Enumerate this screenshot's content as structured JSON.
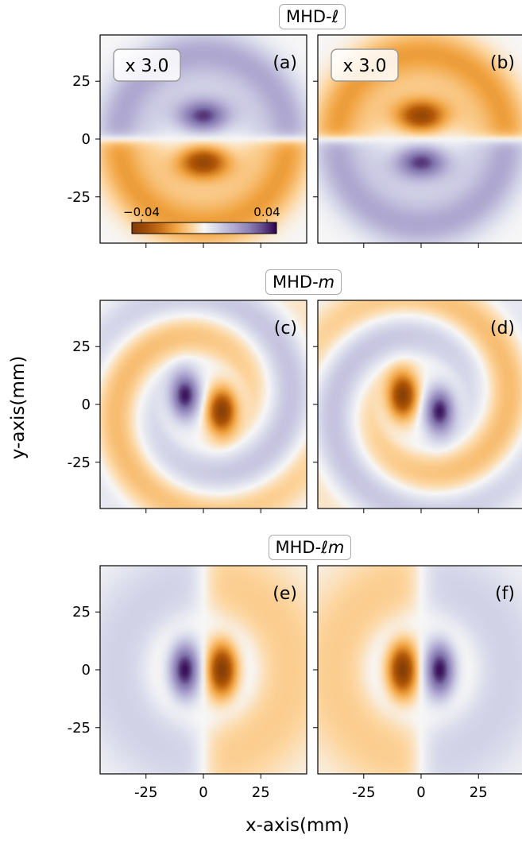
{
  "figure": {
    "xlabel": "x-axis(mm)",
    "ylabel": "y-axis(mm)",
    "rows": [
      {
        "title_prefix": "MHD-",
        "title_symbol": "ℓ",
        "panels": [
          "(a)",
          "(b)"
        ],
        "scale_label": "x 3.0"
      },
      {
        "title_prefix": "MHD-",
        "title_symbol": "m",
        "panels": [
          "(c)",
          "(d)"
        ],
        "scale_label": ""
      },
      {
        "title_prefix": "MHD-",
        "title_symbol": "ℓm",
        "panels": [
          "(e)",
          "(f)"
        ],
        "scale_label": ""
      }
    ]
  },
  "chart_data": {
    "type": "heatmap",
    "colormap": "PuOr",
    "colormap_colors": {
      "negative": "#b35806",
      "zero": "#f7f7f7",
      "positive": "#3f007d"
    },
    "colorbar": {
      "min": -0.04,
      "max": 0.04,
      "tick_labels": [
        "−0.04",
        "0.04"
      ]
    },
    "xlim": [
      -45,
      45
    ],
    "ylim": [
      -45,
      45
    ],
    "xticks": [
      -25,
      0,
      25
    ],
    "yticks": [
      25,
      0,
      -25
    ],
    "xtick_labels": [
      "-25",
      "0",
      "25"
    ],
    "ytick_labels": [
      "25",
      "0",
      "-25"
    ],
    "panels": [
      {
        "label": "(a)",
        "pattern": "horizontal-dipole-rings",
        "sign": 1
      },
      {
        "label": "(b)",
        "pattern": "horizontal-dipole-rings",
        "sign": -1
      },
      {
        "label": "(c)",
        "pattern": "tilted-dipole-spiral",
        "sign": 1
      },
      {
        "label": "(d)",
        "pattern": "tilted-dipole-spiral",
        "sign": -1
      },
      {
        "label": "(e)",
        "pattern": "vertical-dipole-rings",
        "sign": 1
      },
      {
        "label": "(f)",
        "pattern": "vertical-dipole-rings",
        "sign": -1
      }
    ]
  }
}
